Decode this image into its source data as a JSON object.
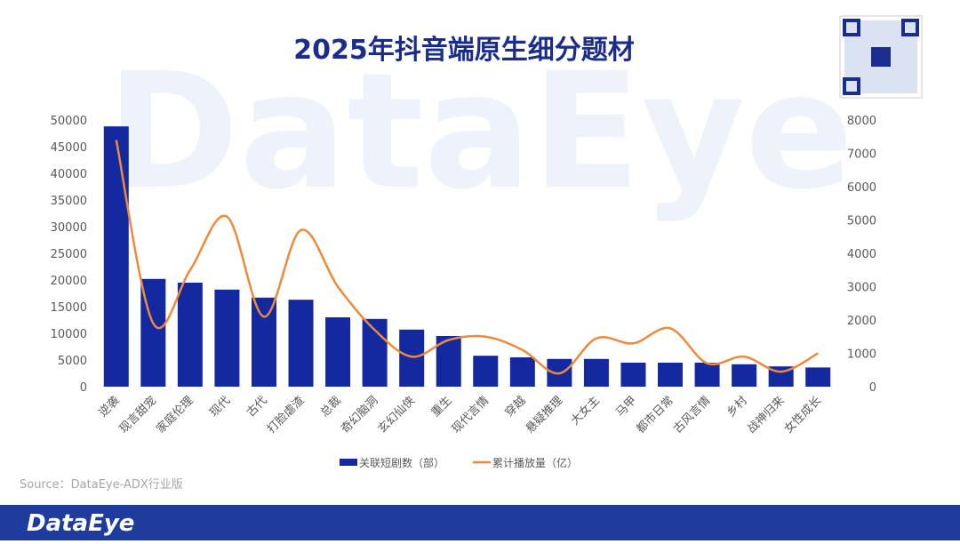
{
  "chart_data": {
    "type": "bar-line",
    "title": "2025年抖音端原生细分题材",
    "source": "Source：DataEye-ADX行业版",
    "brand": "DataEye",
    "categories": [
      "逆袭",
      "现言甜宠",
      "家庭伦理",
      "现代",
      "古代",
      "打脸虐渣",
      "总裁",
      "奇幻脑洞",
      "玄幻仙侠",
      "重生",
      "现代言情",
      "穿越",
      "悬疑推理",
      "大女主",
      "马甲",
      "都市日常",
      "古风言情",
      "乡村",
      "战神归来",
      "女性成长"
    ],
    "series": [
      {
        "name": "关联短剧数（部）",
        "type": "bar",
        "color": "#1428a0",
        "values": [
          48800,
          20200,
          19500,
          18200,
          16700,
          16300,
          13000,
          12700,
          10700,
          9500,
          5800,
          5500,
          5200,
          5200,
          4500,
          4500,
          4500,
          4200,
          3800,
          3600
        ]
      },
      {
        "name": "累计播放量（亿）",
        "type": "line",
        "axis": "y2",
        "color": "#ee8a3a",
        "values": [
          7400,
          1900,
          3500,
          5100,
          2100,
          4700,
          3000,
          1700,
          900,
          1400,
          1500,
          1100,
          400,
          1450,
          1300,
          1750,
          700,
          900,
          450,
          1000
        ]
      }
    ],
    "ylim": [
      0,
      50000
    ],
    "yticks": [
      0,
      5000,
      10000,
      15000,
      20000,
      25000,
      30000,
      35000,
      40000,
      45000,
      50000
    ],
    "y2lim": [
      0,
      8000
    ],
    "y2ticks": [
      0,
      1000,
      2000,
      3000,
      4000,
      5000,
      6000,
      7000,
      8000
    ],
    "grid": false,
    "legend": "bottom"
  }
}
